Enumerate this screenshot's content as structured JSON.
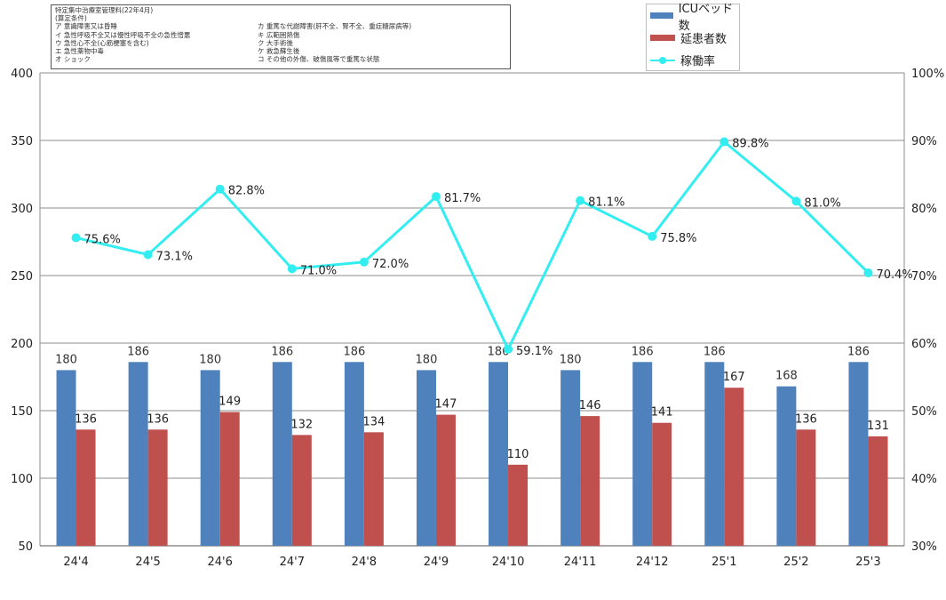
{
  "notes": {
    "title": "特定集中治療室管理料(22年4月)",
    "subtitle": "(算定条件)",
    "items": [
      [
        "ア 意識障害又は昏睡",
        "カ 重篤な代謝障害(肝不全、腎不全、重症糖尿病等)"
      ],
      [
        "イ 急性呼吸不全又は慢性呼吸不全の急性憎悪",
        "キ 広範囲熱傷"
      ],
      [
        "ウ 急性心不全(心筋梗塞を含む)",
        "ク 大手術後"
      ],
      [
        "エ 急性薬物中毒",
        "ケ 救急蘇生後"
      ],
      [
        "オ ショック",
        "コ その他の外傷、破傷風等で重篤な状態"
      ]
    ]
  },
  "legend": {
    "beds": "ICUベッド数",
    "patients": "延患者数",
    "rate": "稼働率"
  },
  "colors": {
    "beds": "#4f81bd",
    "patients": "#c0504d",
    "rate": "#33eef0"
  },
  "chart_data": {
    "type": "bar",
    "categories": [
      "24'4",
      "24'5",
      "24'6",
      "24'7",
      "24'8",
      "24'9",
      "24'10",
      "24'11",
      "24'12",
      "25'1",
      "25'2",
      "25'3"
    ],
    "series": [
      {
        "name": "ICUベッド数",
        "type": "bar",
        "axis": "left",
        "values": [
          180,
          186,
          180,
          186,
          186,
          180,
          186,
          180,
          186,
          186,
          168,
          186
        ],
        "labels": [
          "180",
          "186",
          "180",
          "186",
          "186",
          "180",
          "186",
          "180",
          "186",
          "186",
          "168",
          "186"
        ]
      },
      {
        "name": "延患者数",
        "type": "bar",
        "axis": "left",
        "values": [
          136,
          136,
          149,
          132,
          134,
          147,
          110,
          146,
          141,
          167,
          136,
          131
        ],
        "labels": [
          "136",
          "136",
          "149",
          "132",
          "134",
          "147",
          "110",
          "146",
          "141",
          "167",
          "136",
          "131"
        ]
      },
      {
        "name": "稼働率",
        "type": "line",
        "axis": "right",
        "values": [
          75.6,
          73.1,
          82.8,
          71.0,
          72.0,
          81.7,
          59.1,
          81.1,
          75.8,
          89.8,
          81.0,
          70.4
        ],
        "labels": [
          "75.6%",
          "73.1%",
          "82.8%",
          "71.0%",
          "72.0%",
          "81.7%",
          "59.1%",
          "81.1%",
          "75.8%",
          "89.8%",
          "81.0%",
          "70.4%"
        ]
      }
    ],
    "y_left": {
      "lim": [
        50,
        400
      ],
      "ticks": [
        "50",
        "100",
        "150",
        "200",
        "250",
        "300",
        "350",
        "400"
      ]
    },
    "y_right": {
      "lim": [
        30,
        100
      ],
      "ticks": [
        "30%",
        "40%",
        "50%",
        "60%",
        "70%",
        "80%",
        "90%",
        "100%"
      ]
    },
    "grid": true,
    "legend_position": "top-right"
  }
}
